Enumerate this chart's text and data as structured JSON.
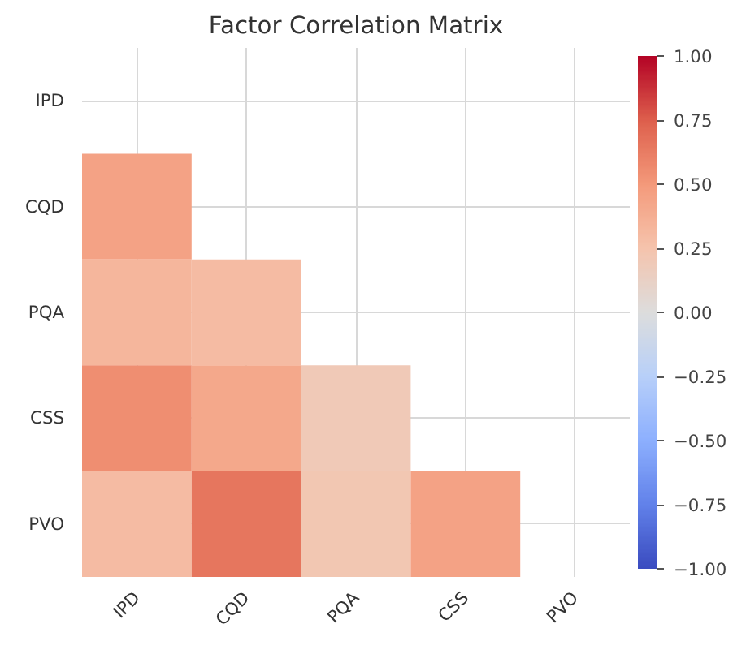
{
  "chart_data": {
    "type": "heatmap",
    "title": "Factor Correlation Matrix",
    "categories": [
      "IPD",
      "CQD",
      "PQA",
      "CSS",
      "PVO"
    ],
    "y_categories": [
      "IPD",
      "CQD",
      "PQA",
      "CSS",
      "PVO"
    ],
    "cells": [
      [
        null,
        null,
        null,
        null,
        null
      ],
      [
        0.45,
        null,
        null,
        null,
        null
      ],
      [
        0.33,
        0.3,
        null,
        null,
        null
      ],
      [
        0.55,
        0.42,
        0.2,
        null,
        null
      ],
      [
        0.3,
        0.65,
        0.22,
        0.45,
        null
      ]
    ],
    "clim": [
      -1,
      1
    ],
    "cticks": [
      {
        "value": 1,
        "label": "1.00"
      },
      {
        "value": 0.75,
        "label": "0.75"
      },
      {
        "value": 0.5,
        "label": "0.50"
      },
      {
        "value": 0.25,
        "label": "0.25"
      },
      {
        "value": 0,
        "label": "0.00"
      },
      {
        "value": -0.25,
        "label": "−0.25"
      },
      {
        "value": -0.5,
        "label": "−0.50"
      },
      {
        "value": -0.75,
        "label": "−0.75"
      },
      {
        "value": -1,
        "label": "−1.00"
      }
    ],
    "grid": true
  }
}
